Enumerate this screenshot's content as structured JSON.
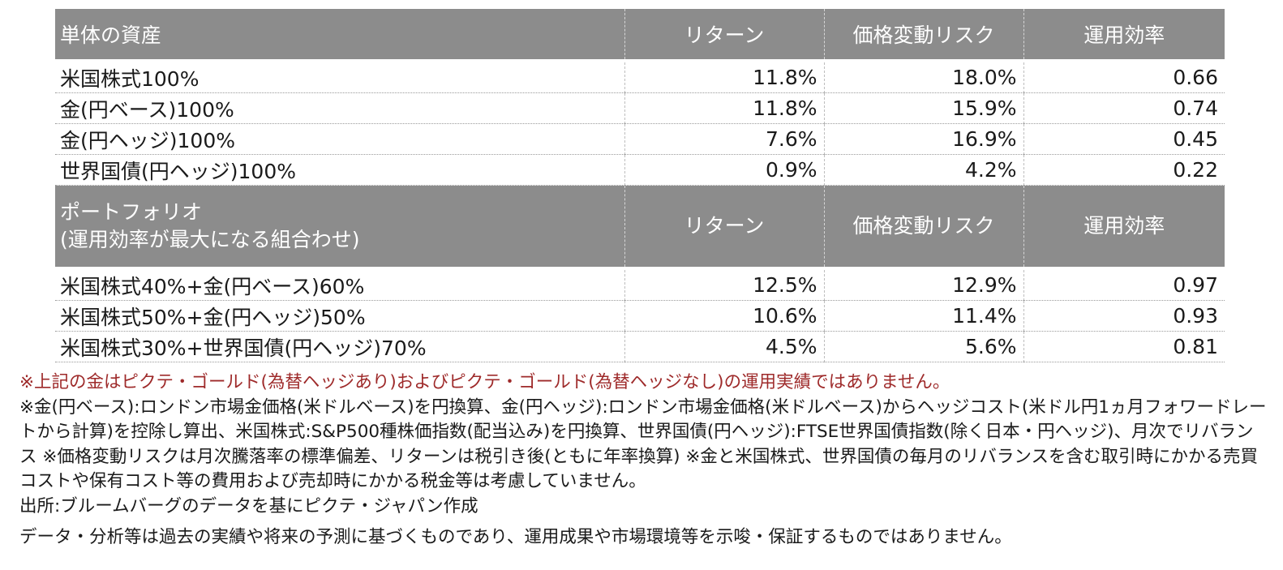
{
  "chart_data": {
    "type": "table",
    "sections": [
      {
        "header": [
          "単体の資産",
          "リターン",
          "価格変動リスク",
          "運用効率"
        ],
        "rows": [
          [
            "米国株式100%",
            "11.8%",
            "18.0%",
            "0.66"
          ],
          [
            "金(円ベース)100%",
            "11.8%",
            "15.9%",
            "0.74"
          ],
          [
            "金(円ヘッジ)100%",
            "7.6%",
            "16.9%",
            "0.45"
          ],
          [
            "世界国債(円ヘッジ)100%",
            "0.9%",
            "4.2%",
            "0.22"
          ]
        ]
      },
      {
        "header": [
          "ポートフォリオ",
          "リターン",
          "価格変動リスク",
          "運用効率"
        ],
        "header_sub": "(運用効率が最大になる組合わせ)",
        "rows": [
          [
            "米国株式40%+金(円ベース)60%",
            "12.5%",
            "12.9%",
            "0.97"
          ],
          [
            "米国株式50%+金(円ヘッジ)50%",
            "10.6%",
            "11.4%",
            "0.93"
          ],
          [
            "米国株式30%+世界国債(円ヘッジ)70%",
            "4.5%",
            "5.6%",
            "0.81"
          ]
        ]
      }
    ]
  },
  "notes": {
    "red": "※上記の金はピクテ・ゴールド(為替ヘッジあり)およびピクテ・ゴールド(為替ヘッジなし)の運用実績ではありません。",
    "main": "※金(円ベース):ロンドン市場金価格(米ドルベース)を円換算、金(円ヘッジ):ロンドン市場金価格(米ドルベース)からヘッジコスト(米ドル円1ヵ月フォワードレートから計算)を控除し算出、米国株式:S&P500種株価指数(配当込み)を円換算、世界国債(円ヘッジ):FTSE世界国債指数(除く日本・円ヘッジ)、月次でリバランス ※価格変動リスクは月次騰落率の標準偏差、リターンは税引き後(ともに年率換算) ※金と米国株式、世界国債の毎月のリバランスを含む取引時にかかる売買コストや保有コスト等の費用および売却時にかかる税金等は考慮していません。",
    "source": "出所:ブルームバーグのデータを基にピクテ・ジャパン作成",
    "disclaimer": "データ・分析等は過去の実績や将来の予測に基づくものであり、運用成果や市場環境等を示唆・保証するものではありません。"
  }
}
